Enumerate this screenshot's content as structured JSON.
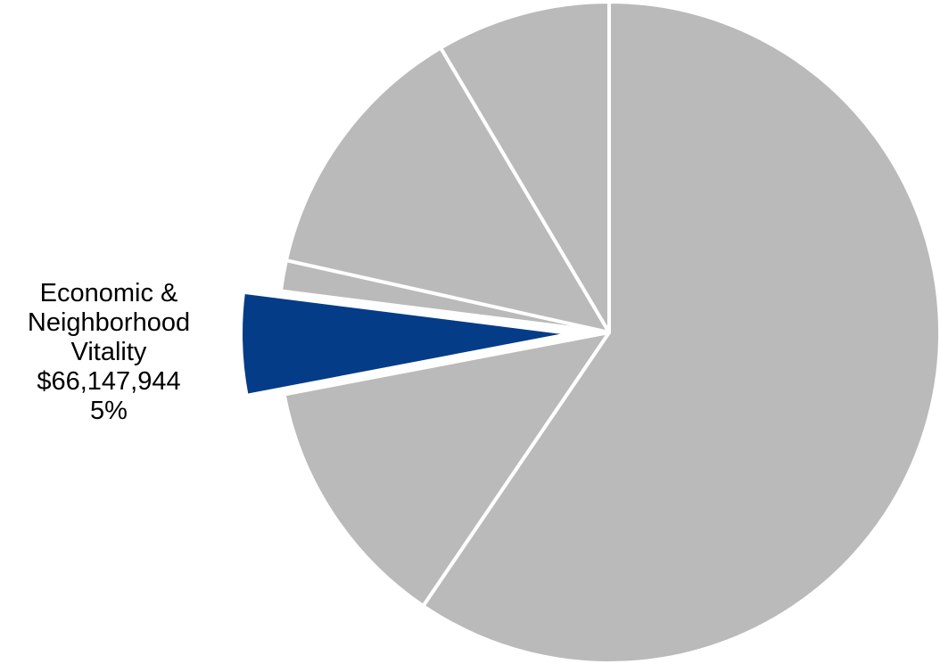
{
  "chart_data": {
    "type": "pie",
    "title": "",
    "slice_color": "#bababa",
    "highlight_color": "#043c87",
    "border_color": "#ffffff",
    "slices": [
      {
        "value": 59.5,
        "highlighted": false
      },
      {
        "value": 12.5,
        "highlighted": false
      },
      {
        "value": 5,
        "highlighted": true,
        "exploded": true
      },
      {
        "value": 1.5,
        "highlighted": false
      },
      {
        "value": 13,
        "highlighted": false
      },
      {
        "value": 8.5,
        "highlighted": false
      }
    ],
    "highlight_label": {
      "lines": [
        "Economic &",
        "Neighborhood",
        "Vitality"
      ],
      "amount": "$66,147,944",
      "percent": "5%"
    }
  }
}
